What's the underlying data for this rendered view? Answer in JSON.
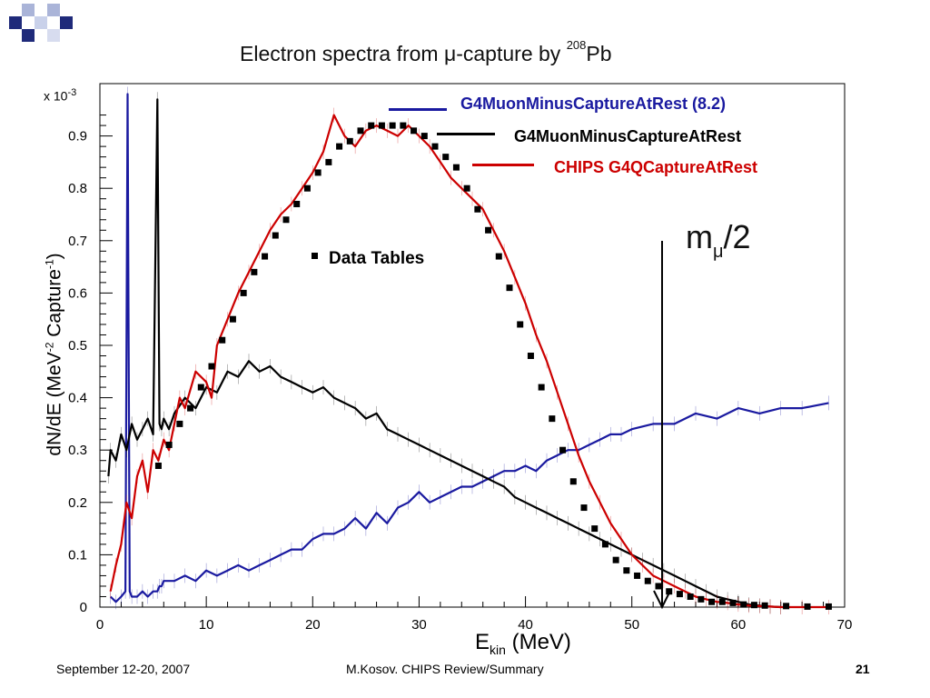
{
  "title": {
    "prefix": "Electron spectra from ",
    "mu": "μ",
    "middle": "-capture by ",
    "sup": "208",
    "element": "Pb"
  },
  "colors": {
    "blue": "#1a1aa0",
    "black": "#000000",
    "red": "#cc0000",
    "deco_navy": "#1f2a7a",
    "deco_light": "#aab4d8"
  },
  "legend": [
    {
      "label": "G4MuonMinusCaptureAtRest (8.2)",
      "color": "#1a1aa0"
    },
    {
      "label": "G4MuonMinusCaptureAtRest",
      "color": "#000000"
    },
    {
      "label": "CHIPS G4QCaptureAtRest",
      "color": "#cc0000"
    }
  ],
  "bullet_label": "Data Tables",
  "annotation": {
    "main": "m",
    "sub": "μ",
    "tail": "/2"
  },
  "axis": {
    "scale_note": "x 10",
    "scale_exp": "-3",
    "y_label_main": "dN/dE (MeV",
    "y_label_sup1": "-2",
    "y_label_mid": " Capture",
    "y_label_sup2": "-1",
    "y_label_end": ")",
    "x_label_main": "E",
    "x_label_sub": "kin",
    "x_label_end": " (MeV)"
  },
  "footer": {
    "date": "September 12-20, 2007",
    "center": "M.Kosov. CHIPS Review/Summary",
    "page": "21"
  },
  "chart_data": {
    "type": "line",
    "xlabel": "Ekin (MeV)",
    "ylabel": "dN/dE (MeV-2 Capture-1)",
    "xlim": [
      0,
      70
    ],
    "ylim": [
      0,
      1.0
    ],
    "y_multiplier": "x 10^-3",
    "xticks": [
      0,
      10,
      20,
      30,
      40,
      50,
      60,
      70
    ],
    "yticks": [
      0,
      0.1,
      0.2,
      0.3,
      0.4,
      0.5,
      0.6,
      0.7,
      0.8,
      0.9
    ],
    "series": [
      {
        "name": "G4MuonMinusCaptureAtRest (8.2)",
        "color": "#1a1aa0",
        "x": [
          1,
          1.5,
          2,
          2.4,
          2.6,
          2.8,
          3,
          3.5,
          4,
          4.5,
          5,
          5.4,
          5.6,
          5.8,
          6,
          7,
          8,
          9,
          10,
          11,
          12,
          13,
          14,
          15,
          16,
          17,
          18,
          19,
          20,
          21,
          22,
          23,
          24,
          25,
          26,
          27,
          28,
          29,
          30,
          31,
          32,
          33,
          34,
          35,
          36,
          37,
          38,
          39,
          40,
          41,
          42,
          43,
          44,
          45,
          46,
          47,
          48,
          49,
          50,
          52,
          54,
          56,
          58,
          60,
          62,
          64,
          66,
          68.5
        ],
        "y": [
          0.02,
          0.01,
          0.02,
          0.03,
          0.98,
          0.03,
          0.02,
          0.02,
          0.03,
          0.02,
          0.03,
          0.03,
          0.04,
          0.04,
          0.05,
          0.05,
          0.06,
          0.05,
          0.07,
          0.06,
          0.07,
          0.08,
          0.07,
          0.08,
          0.09,
          0.1,
          0.11,
          0.11,
          0.13,
          0.14,
          0.14,
          0.15,
          0.17,
          0.15,
          0.18,
          0.16,
          0.19,
          0.2,
          0.22,
          0.2,
          0.21,
          0.22,
          0.23,
          0.23,
          0.24,
          0.25,
          0.26,
          0.26,
          0.27,
          0.26,
          0.28,
          0.29,
          0.3,
          0.3,
          0.31,
          0.32,
          0.33,
          0.33,
          0.34,
          0.35,
          0.35,
          0.37,
          0.36,
          0.38,
          0.37,
          0.38,
          0.38,
          0.39
        ]
      },
      {
        "name": "G4MuonMinusCaptureAtRest",
        "color": "#000000",
        "x": [
          0.8,
          1,
          1.5,
          2,
          2.5,
          3,
          3.5,
          4,
          4.5,
          5,
          5.4,
          5.6,
          5.8,
          6,
          6.5,
          7,
          8,
          9,
          10,
          11,
          12,
          13,
          14,
          15,
          16,
          17,
          18,
          19,
          20,
          21,
          22,
          23,
          24,
          25,
          26,
          27,
          28,
          29,
          30,
          31,
          32,
          33,
          34,
          35,
          36,
          37,
          38,
          39,
          40,
          41,
          42,
          43,
          44,
          45,
          46,
          47,
          48,
          49,
          50,
          51,
          52,
          53,
          54,
          55,
          56,
          57,
          58,
          59,
          60,
          61,
          62,
          63,
          64
        ],
        "y": [
          0.25,
          0.3,
          0.28,
          0.33,
          0.3,
          0.35,
          0.32,
          0.34,
          0.36,
          0.33,
          0.97,
          0.35,
          0.34,
          0.36,
          0.34,
          0.37,
          0.4,
          0.38,
          0.42,
          0.41,
          0.45,
          0.44,
          0.47,
          0.45,
          0.46,
          0.44,
          0.43,
          0.42,
          0.41,
          0.42,
          0.4,
          0.39,
          0.38,
          0.36,
          0.37,
          0.34,
          0.33,
          0.32,
          0.31,
          0.3,
          0.29,
          0.28,
          0.27,
          0.26,
          0.25,
          0.24,
          0.23,
          0.21,
          0.2,
          0.19,
          0.18,
          0.17,
          0.16,
          0.15,
          0.14,
          0.13,
          0.12,
          0.11,
          0.1,
          0.09,
          0.08,
          0.07,
          0.06,
          0.05,
          0.04,
          0.03,
          0.02,
          0.015,
          0.01,
          0.005,
          0.003,
          0.001,
          0
        ]
      },
      {
        "name": "CHIPS G4QCaptureAtRest",
        "color": "#cc0000",
        "x": [
          1,
          1.5,
          2,
          2.5,
          3,
          3.5,
          4,
          4.5,
          5,
          5.5,
          6,
          6.5,
          7,
          7.5,
          8,
          9,
          10,
          10.5,
          11,
          12,
          13,
          14,
          15,
          16,
          17,
          18,
          19,
          20,
          21,
          22,
          23,
          24,
          25,
          26,
          27,
          28,
          29,
          30,
          31,
          32,
          33,
          34,
          35,
          36,
          37,
          38,
          39,
          40,
          41,
          42,
          43,
          44,
          45,
          46,
          47,
          48,
          49,
          50,
          51,
          52,
          53,
          54,
          55,
          56,
          57,
          58,
          59,
          60,
          61,
          62,
          63,
          64,
          66,
          68.5
        ],
        "y": [
          0.03,
          0.08,
          0.12,
          0.2,
          0.17,
          0.25,
          0.28,
          0.22,
          0.3,
          0.28,
          0.32,
          0.3,
          0.35,
          0.4,
          0.38,
          0.45,
          0.43,
          0.4,
          0.5,
          0.55,
          0.6,
          0.64,
          0.68,
          0.72,
          0.75,
          0.77,
          0.8,
          0.83,
          0.87,
          0.94,
          0.9,
          0.88,
          0.91,
          0.92,
          0.91,
          0.9,
          0.92,
          0.9,
          0.88,
          0.85,
          0.82,
          0.8,
          0.78,
          0.76,
          0.72,
          0.68,
          0.63,
          0.58,
          0.52,
          0.47,
          0.41,
          0.35,
          0.29,
          0.24,
          0.2,
          0.16,
          0.13,
          0.1,
          0.08,
          0.06,
          0.05,
          0.04,
          0.03,
          0.02,
          0.015,
          0.01,
          0.008,
          0.005,
          0.003,
          0.002,
          0.001,
          0,
          0,
          0
        ]
      },
      {
        "name": "Data Tables",
        "color": "#000000",
        "marker": "square",
        "x": [
          5.5,
          6.5,
          7.5,
          8.5,
          9.5,
          10.5,
          11.5,
          12.5,
          13.5,
          14.5,
          15.5,
          16.5,
          17.5,
          18.5,
          19.5,
          20.5,
          21.5,
          22.5,
          23.5,
          24.5,
          25.5,
          26.5,
          27.5,
          28.5,
          29.5,
          30.5,
          31.5,
          32.5,
          33.5,
          34.5,
          35.5,
          36.5,
          37.5,
          38.5,
          39.5,
          40.5,
          41.5,
          42.5,
          43.5,
          44.5,
          45.5,
          46.5,
          47.5,
          48.5,
          49.5,
          50.5,
          51.5,
          52.5,
          53.5,
          54.5,
          55.5,
          56.5,
          57.5,
          58.5,
          59.5,
          60.5,
          61.5,
          62.5,
          64.5,
          66.5,
          68.5
        ],
        "y": [
          0.27,
          0.31,
          0.35,
          0.38,
          0.42,
          0.46,
          0.51,
          0.55,
          0.6,
          0.64,
          0.67,
          0.71,
          0.74,
          0.77,
          0.8,
          0.83,
          0.85,
          0.88,
          0.89,
          0.91,
          0.92,
          0.92,
          0.92,
          0.92,
          0.91,
          0.9,
          0.88,
          0.86,
          0.84,
          0.8,
          0.76,
          0.72,
          0.67,
          0.61,
          0.54,
          0.48,
          0.42,
          0.36,
          0.3,
          0.24,
          0.19,
          0.15,
          0.12,
          0.09,
          0.07,
          0.06,
          0.05,
          0.04,
          0.03,
          0.025,
          0.02,
          0.015,
          0.01,
          0.01,
          0.008,
          0.005,
          0.004,
          0.003,
          0.002,
          0.001,
          0.001
        ]
      }
    ]
  }
}
